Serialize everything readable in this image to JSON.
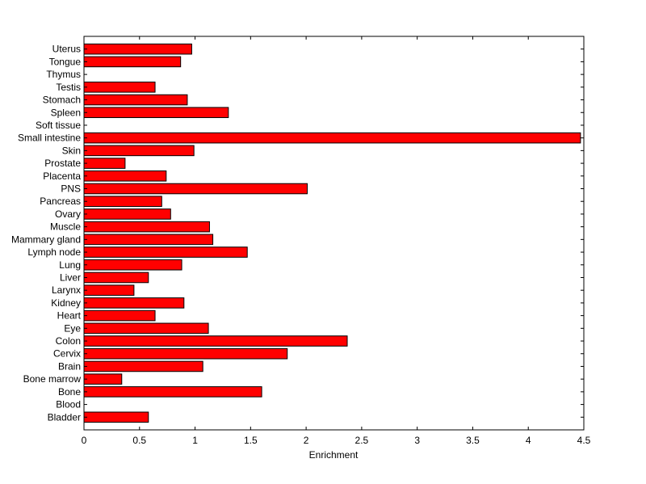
{
  "chart_data": {
    "type": "bar",
    "orientation": "horizontal",
    "title": "",
    "xlabel": "Enrichment",
    "ylabel": "",
    "xlim": [
      0,
      4.5
    ],
    "xticks": [
      0,
      0.5,
      1,
      1.5,
      2,
      2.5,
      3,
      3.5,
      4,
      4.5
    ],
    "xtick_labels": [
      "0",
      "0.5",
      "1",
      "1.5",
      "2",
      "2.5",
      "3",
      "3.5",
      "4",
      "4.5"
    ],
    "grid": false,
    "legend": "none",
    "bar_color": "#ff0000",
    "categories": [
      "Uterus",
      "Tongue",
      "Thymus",
      "Testis",
      "Stomach",
      "Spleen",
      "Soft tissue",
      "Small intestine",
      "Skin",
      "Prostate",
      "Placenta",
      "PNS",
      "Pancreas",
      "Ovary",
      "Muscle",
      "Mammary gland",
      "Lymph node",
      "Lung",
      "Liver",
      "Larynx",
      "Kidney",
      "Heart",
      "Eye",
      "Colon",
      "Cervix",
      "Brain",
      "Bone marrow",
      "Bone",
      "Blood",
      "Bladder"
    ],
    "values": [
      0.97,
      0.87,
      0.0,
      0.64,
      0.93,
      1.3,
      0.0,
      4.47,
      0.99,
      0.37,
      0.74,
      2.01,
      0.7,
      0.78,
      1.13,
      1.16,
      1.47,
      0.88,
      0.58,
      0.45,
      0.9,
      0.64,
      1.12,
      2.37,
      1.83,
      1.07,
      0.34,
      1.6,
      0.0,
      0.58
    ]
  }
}
